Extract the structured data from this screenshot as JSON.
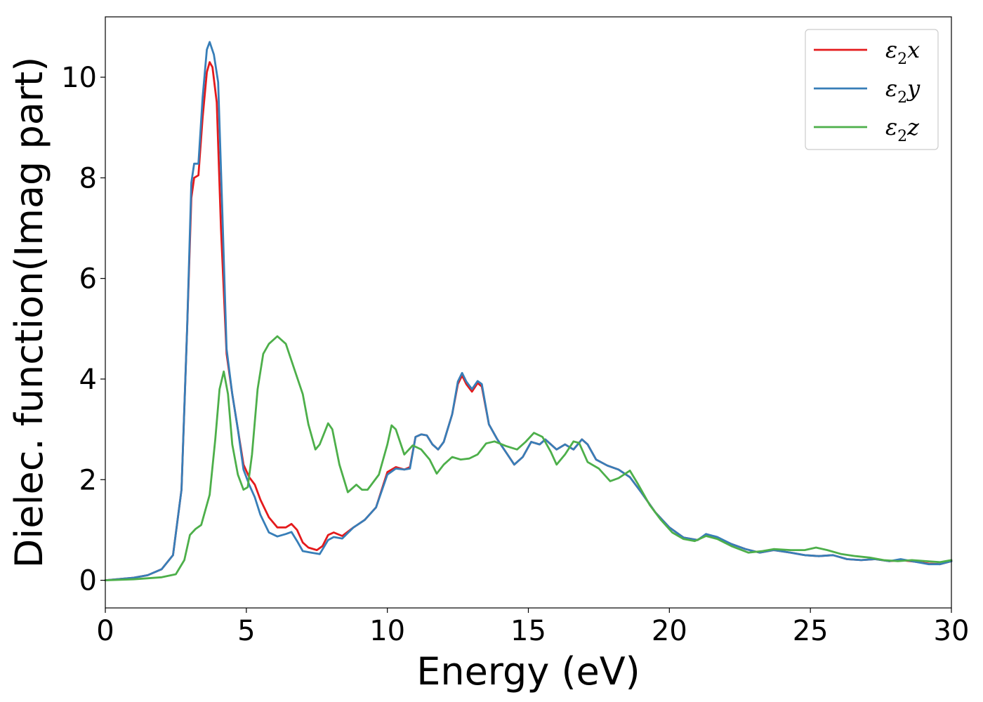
{
  "chart_data": {
    "type": "line",
    "xlabel": "Energy (eV)",
    "ylabel": "Dielec. function(Imag part)",
    "xlim": [
      0,
      30
    ],
    "ylim": [
      -0.55,
      11.2
    ],
    "xticks": [
      0,
      5,
      10,
      15,
      20,
      25,
      30
    ],
    "yticks": [
      0,
      2,
      4,
      6,
      8,
      10
    ],
    "grid": false,
    "legend_position": "top-right",
    "series": [
      {
        "name": "ε2x",
        "legend": {
          "base": "ε",
          "sub": "2",
          "suffix": "x"
        },
        "color": "#e41a1c",
        "points": [
          [
            0,
            0
          ],
          [
            1,
            0.05
          ],
          [
            1.5,
            0.1
          ],
          [
            2,
            0.22
          ],
          [
            2.4,
            0.5
          ],
          [
            2.7,
            1.8
          ],
          [
            2.9,
            5
          ],
          [
            3.05,
            7.6
          ],
          [
            3.15,
            8.0
          ],
          [
            3.3,
            8.05
          ],
          [
            3.45,
            9.2
          ],
          [
            3.6,
            10.1
          ],
          [
            3.7,
            10.3
          ],
          [
            3.8,
            10.2
          ],
          [
            3.95,
            9.5
          ],
          [
            4.1,
            7
          ],
          [
            4.3,
            4.5
          ],
          [
            4.5,
            3.7
          ],
          [
            4.7,
            3.0
          ],
          [
            4.9,
            2.3
          ],
          [
            5.1,
            2.05
          ],
          [
            5.3,
            1.9
          ],
          [
            5.5,
            1.6
          ],
          [
            5.8,
            1.25
          ],
          [
            6.1,
            1.05
          ],
          [
            6.4,
            1.05
          ],
          [
            6.6,
            1.12
          ],
          [
            6.8,
            1.0
          ],
          [
            7.0,
            0.75
          ],
          [
            7.2,
            0.65
          ],
          [
            7.5,
            0.6
          ],
          [
            7.7,
            0.68
          ],
          [
            7.9,
            0.9
          ],
          [
            8.1,
            0.95
          ],
          [
            8.4,
            0.88
          ],
          [
            8.8,
            1.05
          ],
          [
            9.2,
            1.2
          ],
          [
            9.6,
            1.45
          ],
          [
            10,
            2.15
          ],
          [
            10.3,
            2.25
          ],
          [
            10.6,
            2.2
          ],
          [
            10.8,
            2.25
          ],
          [
            11,
            2.85
          ],
          [
            11.2,
            2.9
          ],
          [
            11.4,
            2.88
          ],
          [
            11.6,
            2.7
          ],
          [
            11.8,
            2.6
          ],
          [
            12,
            2.75
          ],
          [
            12.3,
            3.3
          ],
          [
            12.5,
            3.9
          ],
          [
            12.65,
            4.07
          ],
          [
            12.8,
            3.9
          ],
          [
            13,
            3.75
          ],
          [
            13.2,
            3.92
          ],
          [
            13.35,
            3.85
          ],
          [
            13.6,
            3.1
          ],
          [
            13.9,
            2.8
          ],
          [
            14.2,
            2.55
          ],
          [
            14.5,
            2.3
          ],
          [
            14.8,
            2.45
          ],
          [
            15.1,
            2.75
          ],
          [
            15.4,
            2.7
          ],
          [
            15.6,
            2.8
          ],
          [
            15.8,
            2.7
          ],
          [
            16,
            2.6
          ],
          [
            16.3,
            2.7
          ],
          [
            16.6,
            2.6
          ],
          [
            16.9,
            2.8
          ],
          [
            17.1,
            2.7
          ],
          [
            17.4,
            2.4
          ],
          [
            17.8,
            2.28
          ],
          [
            18.2,
            2.2
          ],
          [
            18.6,
            2.05
          ],
          [
            19,
            1.75
          ],
          [
            19.5,
            1.35
          ],
          [
            20,
            1.05
          ],
          [
            20.5,
            0.85
          ],
          [
            21,
            0.8
          ],
          [
            21.3,
            0.9
          ],
          [
            21.7,
            0.85
          ],
          [
            22.2,
            0.72
          ],
          [
            22.7,
            0.62
          ],
          [
            23.2,
            0.55
          ],
          [
            23.7,
            0.6
          ],
          [
            24.3,
            0.55
          ],
          [
            24.8,
            0.5
          ],
          [
            25.3,
            0.48
          ],
          [
            25.8,
            0.5
          ],
          [
            26.3,
            0.42
          ],
          [
            26.8,
            0.4
          ],
          [
            27.3,
            0.42
          ],
          [
            27.8,
            0.38
          ],
          [
            28.2,
            0.4
          ],
          [
            28.7,
            0.37
          ],
          [
            29.2,
            0.33
          ],
          [
            29.6,
            0.32
          ],
          [
            30,
            0.38
          ]
        ]
      },
      {
        "name": "ε2y",
        "legend": {
          "base": "ε",
          "sub": "2",
          "suffix": "y"
        },
        "color": "#377eb8",
        "points": [
          [
            0,
            0
          ],
          [
            1,
            0.05
          ],
          [
            1.5,
            0.1
          ],
          [
            2,
            0.22
          ],
          [
            2.4,
            0.5
          ],
          [
            2.7,
            1.8
          ],
          [
            2.9,
            5
          ],
          [
            3.05,
            7.9
          ],
          [
            3.15,
            8.28
          ],
          [
            3.3,
            8.28
          ],
          [
            3.45,
            9.6
          ],
          [
            3.6,
            10.55
          ],
          [
            3.7,
            10.7
          ],
          [
            3.85,
            10.45
          ],
          [
            4.0,
            9.9
          ],
          [
            4.15,
            7.3
          ],
          [
            4.3,
            4.6
          ],
          [
            4.5,
            3.7
          ],
          [
            4.7,
            3.0
          ],
          [
            4.9,
            2.2
          ],
          [
            5.1,
            1.9
          ],
          [
            5.3,
            1.65
          ],
          [
            5.5,
            1.3
          ],
          [
            5.8,
            0.95
          ],
          [
            6.1,
            0.87
          ],
          [
            6.4,
            0.92
          ],
          [
            6.6,
            0.96
          ],
          [
            6.8,
            0.78
          ],
          [
            7.0,
            0.58
          ],
          [
            7.3,
            0.55
          ],
          [
            7.6,
            0.52
          ],
          [
            7.9,
            0.8
          ],
          [
            8.1,
            0.86
          ],
          [
            8.4,
            0.83
          ],
          [
            8.8,
            1.05
          ],
          [
            9.2,
            1.2
          ],
          [
            9.6,
            1.45
          ],
          [
            10,
            2.1
          ],
          [
            10.3,
            2.22
          ],
          [
            10.6,
            2.2
          ],
          [
            10.8,
            2.22
          ],
          [
            11,
            2.85
          ],
          [
            11.2,
            2.9
          ],
          [
            11.4,
            2.88
          ],
          [
            11.6,
            2.7
          ],
          [
            11.8,
            2.6
          ],
          [
            12,
            2.75
          ],
          [
            12.3,
            3.3
          ],
          [
            12.5,
            3.95
          ],
          [
            12.65,
            4.12
          ],
          [
            12.8,
            3.95
          ],
          [
            13,
            3.8
          ],
          [
            13.2,
            3.96
          ],
          [
            13.35,
            3.9
          ],
          [
            13.6,
            3.1
          ],
          [
            13.9,
            2.8
          ],
          [
            14.2,
            2.55
          ],
          [
            14.5,
            2.3
          ],
          [
            14.8,
            2.45
          ],
          [
            15.1,
            2.75
          ],
          [
            15.4,
            2.7
          ],
          [
            15.6,
            2.8
          ],
          [
            15.8,
            2.7
          ],
          [
            16,
            2.6
          ],
          [
            16.3,
            2.7
          ],
          [
            16.6,
            2.6
          ],
          [
            16.9,
            2.8
          ],
          [
            17.1,
            2.7
          ],
          [
            17.4,
            2.4
          ],
          [
            17.8,
            2.28
          ],
          [
            18.2,
            2.2
          ],
          [
            18.6,
            2.05
          ],
          [
            19,
            1.75
          ],
          [
            19.5,
            1.35
          ],
          [
            20,
            1.05
          ],
          [
            20.5,
            0.85
          ],
          [
            21,
            0.8
          ],
          [
            21.3,
            0.92
          ],
          [
            21.7,
            0.86
          ],
          [
            22.2,
            0.72
          ],
          [
            22.7,
            0.62
          ],
          [
            23.2,
            0.55
          ],
          [
            23.7,
            0.6
          ],
          [
            24.3,
            0.55
          ],
          [
            24.8,
            0.5
          ],
          [
            25.3,
            0.48
          ],
          [
            25.8,
            0.5
          ],
          [
            26.3,
            0.42
          ],
          [
            26.8,
            0.4
          ],
          [
            27.3,
            0.42
          ],
          [
            27.8,
            0.38
          ],
          [
            28.2,
            0.42
          ],
          [
            28.7,
            0.37
          ],
          [
            29.2,
            0.32
          ],
          [
            29.6,
            0.32
          ],
          [
            30,
            0.38
          ]
        ]
      },
      {
        "name": "ε2z",
        "legend": {
          "base": "ε",
          "sub": "2",
          "suffix": "z"
        },
        "color": "#4daf4a",
        "points": [
          [
            0,
            0
          ],
          [
            1,
            0.02
          ],
          [
            2,
            0.06
          ],
          [
            2.5,
            0.12
          ],
          [
            2.8,
            0.4
          ],
          [
            3.0,
            0.9
          ],
          [
            3.2,
            1.02
          ],
          [
            3.4,
            1.1
          ],
          [
            3.7,
            1.7
          ],
          [
            3.9,
            2.8
          ],
          [
            4.05,
            3.8
          ],
          [
            4.2,
            4.15
          ],
          [
            4.35,
            3.7
          ],
          [
            4.5,
            2.7
          ],
          [
            4.7,
            2.1
          ],
          [
            4.9,
            1.8
          ],
          [
            5.05,
            1.85
          ],
          [
            5.2,
            2.5
          ],
          [
            5.4,
            3.8
          ],
          [
            5.6,
            4.5
          ],
          [
            5.8,
            4.7
          ],
          [
            6.1,
            4.85
          ],
          [
            6.4,
            4.7
          ],
          [
            6.7,
            4.2
          ],
          [
            7.0,
            3.7
          ],
          [
            7.2,
            3.1
          ],
          [
            7.45,
            2.6
          ],
          [
            7.6,
            2.7
          ],
          [
            7.9,
            3.12
          ],
          [
            8.05,
            3.0
          ],
          [
            8.3,
            2.3
          ],
          [
            8.6,
            1.75
          ],
          [
            8.9,
            1.9
          ],
          [
            9.1,
            1.8
          ],
          [
            9.3,
            1.8
          ],
          [
            9.7,
            2.1
          ],
          [
            10,
            2.7
          ],
          [
            10.15,
            3.08
          ],
          [
            10.3,
            3.0
          ],
          [
            10.6,
            2.5
          ],
          [
            10.9,
            2.68
          ],
          [
            11.2,
            2.6
          ],
          [
            11.5,
            2.4
          ],
          [
            11.75,
            2.12
          ],
          [
            12,
            2.3
          ],
          [
            12.3,
            2.45
          ],
          [
            12.6,
            2.4
          ],
          [
            12.9,
            2.42
          ],
          [
            13.2,
            2.5
          ],
          [
            13.5,
            2.72
          ],
          [
            13.8,
            2.76
          ],
          [
            14.2,
            2.67
          ],
          [
            14.6,
            2.6
          ],
          [
            14.9,
            2.75
          ],
          [
            15.2,
            2.93
          ],
          [
            15.5,
            2.85
          ],
          [
            15.8,
            2.55
          ],
          [
            16.0,
            2.3
          ],
          [
            16.3,
            2.5
          ],
          [
            16.6,
            2.76
          ],
          [
            16.8,
            2.73
          ],
          [
            17.1,
            2.35
          ],
          [
            17.5,
            2.22
          ],
          [
            17.9,
            1.97
          ],
          [
            18.2,
            2.03
          ],
          [
            18.6,
            2.18
          ],
          [
            18.9,
            1.9
          ],
          [
            19.3,
            1.5
          ],
          [
            19.7,
            1.2
          ],
          [
            20.1,
            0.95
          ],
          [
            20.5,
            0.82
          ],
          [
            20.9,
            0.78
          ],
          [
            21.3,
            0.88
          ],
          [
            21.7,
            0.82
          ],
          [
            22.2,
            0.68
          ],
          [
            22.8,
            0.55
          ],
          [
            23.3,
            0.58
          ],
          [
            23.7,
            0.62
          ],
          [
            24.3,
            0.6
          ],
          [
            24.8,
            0.6
          ],
          [
            25.2,
            0.65
          ],
          [
            25.6,
            0.6
          ],
          [
            26.1,
            0.52
          ],
          [
            26.6,
            0.48
          ],
          [
            27.1,
            0.45
          ],
          [
            27.6,
            0.4
          ],
          [
            28.1,
            0.38
          ],
          [
            28.6,
            0.4
          ],
          [
            29.1,
            0.38
          ],
          [
            29.6,
            0.36
          ],
          [
            30,
            0.4
          ]
        ]
      }
    ]
  }
}
